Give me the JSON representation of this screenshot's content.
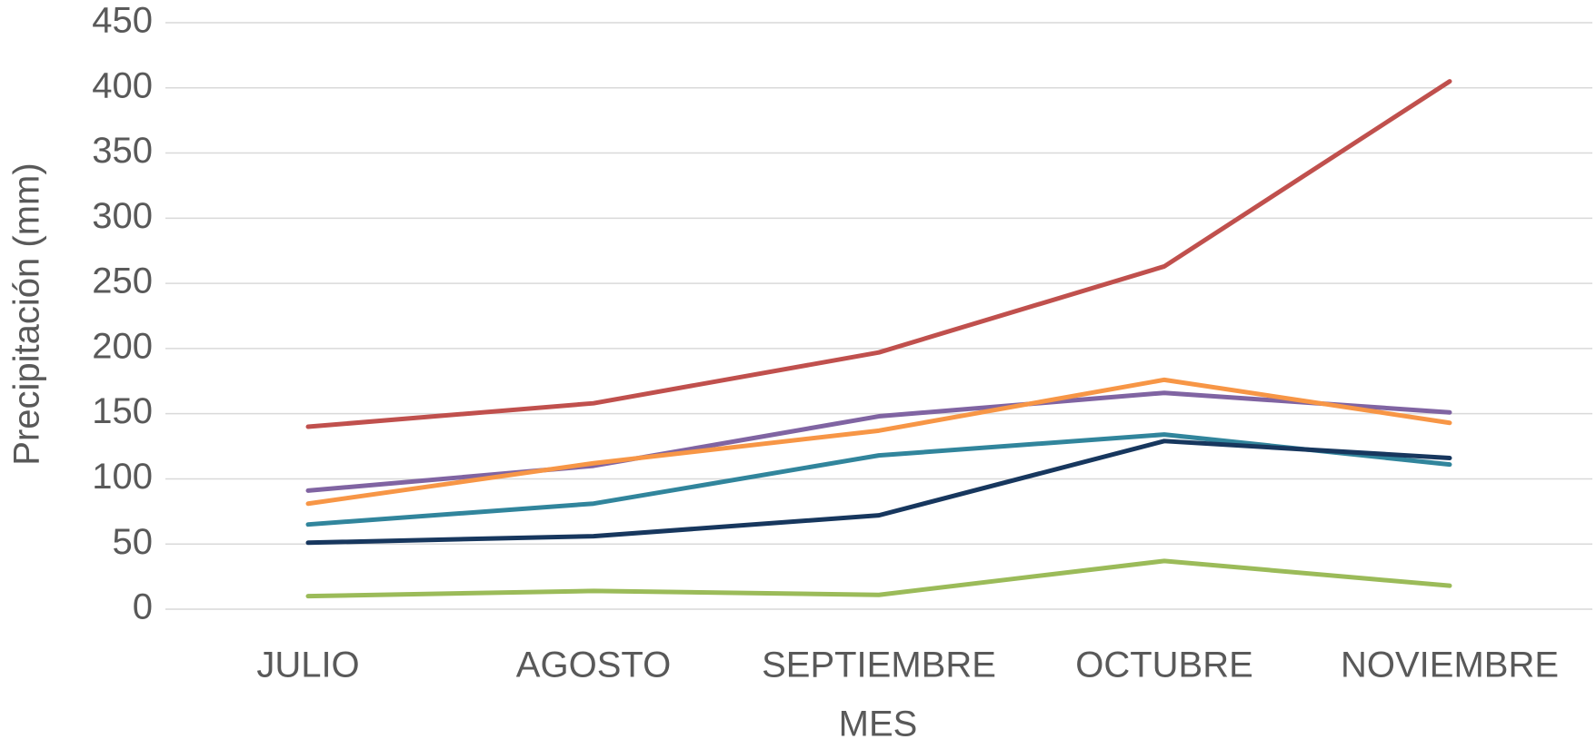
{
  "chart_data": {
    "type": "line",
    "xlabel": "MES",
    "ylabel": "Precipitación (mm)",
    "categories": [
      "JULIO",
      "AGOSTO",
      "SEPTIEMBRE",
      "OCTUBRE",
      "NOVIEMBRE"
    ],
    "series": [
      {
        "color": "#c0504d",
        "values": [
          140,
          158,
          197,
          263,
          405
        ]
      },
      {
        "color": "#8064a2",
        "values": [
          91,
          110,
          148,
          166,
          151
        ]
      },
      {
        "color": "#f79646",
        "values": [
          81,
          112,
          137,
          176,
          143
        ]
      },
      {
        "color": "#31859c",
        "values": [
          65,
          81,
          118,
          134,
          111
        ]
      },
      {
        "color": "#17375e",
        "values": [
          51,
          56,
          72,
          129,
          116
        ]
      },
      {
        "color": "#9bbb59",
        "values": [
          10,
          14,
          11,
          37,
          18
        ]
      }
    ],
    "ylim": [
      0,
      450
    ],
    "yticks": [
      0,
      50,
      100,
      150,
      200,
      250,
      300,
      350,
      400,
      450
    ],
    "grid": true
  }
}
